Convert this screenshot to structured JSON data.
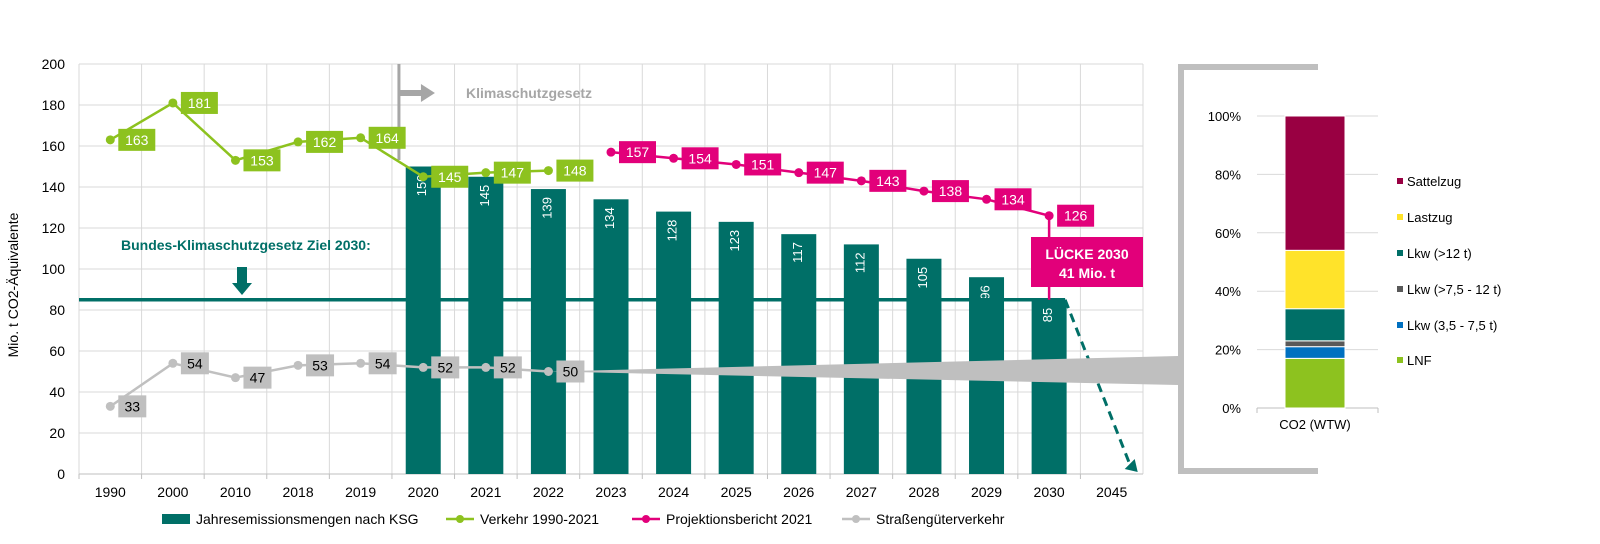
{
  "chart_data": [
    {
      "type": "bar",
      "ylabel": "Mio. t CO2-Äquivalente",
      "ylim": [
        0,
        200
      ],
      "yticks": [
        0,
        20,
        40,
        60,
        80,
        100,
        120,
        140,
        160,
        180,
        200
      ],
      "categories": [
        "1990",
        "2000",
        "2010",
        "2018",
        "2019",
        "2020",
        "2021",
        "2022",
        "2023",
        "2024",
        "2025",
        "2026",
        "2027",
        "2028",
        "2029",
        "2030",
        "2045"
      ],
      "series": [
        {
          "name": "Jahresemissionsmengen nach KSG",
          "kind": "bar",
          "color": "#006f67",
          "values": [
            null,
            null,
            null,
            null,
            null,
            150,
            145,
            139,
            134,
            128,
            123,
            117,
            112,
            105,
            96,
            85,
            null
          ],
          "labels": [
            null,
            null,
            null,
            null,
            null,
            "150",
            "145",
            "139",
            "134",
            "128",
            "123",
            "117",
            "112",
            "105",
            "96",
            "85",
            null
          ]
        },
        {
          "name": "Verkehr 1990-2021",
          "kind": "line",
          "color": "#8dc21f",
          "values": [
            163,
            181,
            153,
            162,
            164,
            145,
            147,
            148,
            null,
            null,
            null,
            null,
            null,
            null,
            null,
            null,
            null
          ]
        },
        {
          "name": "Projektionsbericht 2021",
          "kind": "line",
          "color": "#e2007a",
          "values": [
            null,
            null,
            null,
            null,
            null,
            null,
            null,
            null,
            157,
            154,
            151,
            147,
            143,
            138,
            134,
            126,
            null
          ]
        },
        {
          "name": "Straßengüterverkehr",
          "kind": "line",
          "color": "#c0c0c0",
          "values": [
            33,
            54,
            47,
            53,
            54,
            52,
            52,
            50,
            null,
            null,
            null,
            null,
            null,
            null,
            null,
            null,
            null
          ]
        }
      ],
      "target_line": {
        "value": 85,
        "color": "#006f67"
      },
      "annotations": {
        "target_label": "Bundes-Klimaschutzgesetz Ziel 2030:",
        "law_label": "Klimaschutzgesetz",
        "gap_line1": "LÜCKE 2030",
        "gap_line2": "41 Mio. t"
      },
      "grid": true,
      "legend": "bottom"
    },
    {
      "type": "bar",
      "stacked": true,
      "categories": [
        "CO2 (WTW)"
      ],
      "ylim": [
        0,
        100
      ],
      "ytick_labels": [
        "0%",
        "20%",
        "40%",
        "60%",
        "80%",
        "100%"
      ],
      "series": [
        {
          "name": "LNF",
          "value": 17,
          "color": "#8dc21f"
        },
        {
          "name": "Lkw (3,5 - 7,5 t)",
          "value": 4,
          "color": "#0070c0"
        },
        {
          "name": "Lkw (>7,5 - 12 t)",
          "value": 2,
          "color": "#595959"
        },
        {
          "name": "Lkw (>12 t)",
          "value": 11,
          "color": "#006f67"
        },
        {
          "name": "Lastzug",
          "value": 20,
          "color": "#ffe32a"
        },
        {
          "name": "Sattelzug",
          "value": 46,
          "color": "#990042"
        }
      ],
      "legend": "right"
    }
  ]
}
